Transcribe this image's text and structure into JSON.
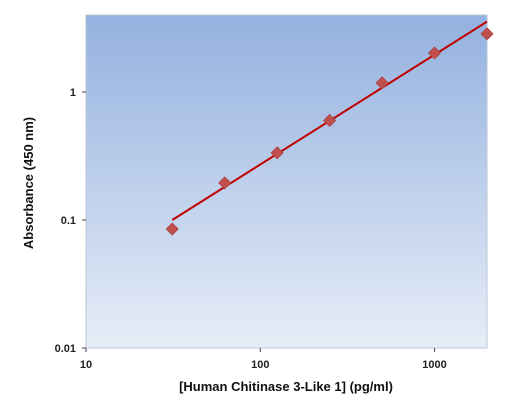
{
  "chart_data": {
    "type": "scatter",
    "title": "",
    "xlabel": "[Human Chitinase 3-Like 1] (pg/ml)",
    "ylabel": "Absorbance (450 nm)",
    "x_scale": "log",
    "y_scale": "log",
    "xlim": [
      10,
      2000
    ],
    "ylim": [
      0.01,
      4
    ],
    "x_ticks": [
      10,
      100,
      1000
    ],
    "x_tick_labels": [
      "10",
      "100",
      "1000"
    ],
    "y_ticks": [
      0.01,
      0.1,
      1
    ],
    "y_tick_labels": [
      "0.01",
      "0.1",
      "1"
    ],
    "grid": false,
    "legend": "none",
    "series": [
      {
        "x": [
          31.25,
          62.5,
          125,
          250,
          500,
          1000,
          2000
        ],
        "y": [
          0.085,
          0.195,
          0.335,
          0.6,
          1.18,
          2.02,
          2.85
        ],
        "color": "#c0504d"
      }
    ],
    "fit_line": {
      "x": [
        31.25,
        2000
      ],
      "y": [
        0.1,
        3.55
      ],
      "color": "#c00000"
    },
    "plot_background": [
      "#93b1df",
      "#e7edf7"
    ]
  }
}
